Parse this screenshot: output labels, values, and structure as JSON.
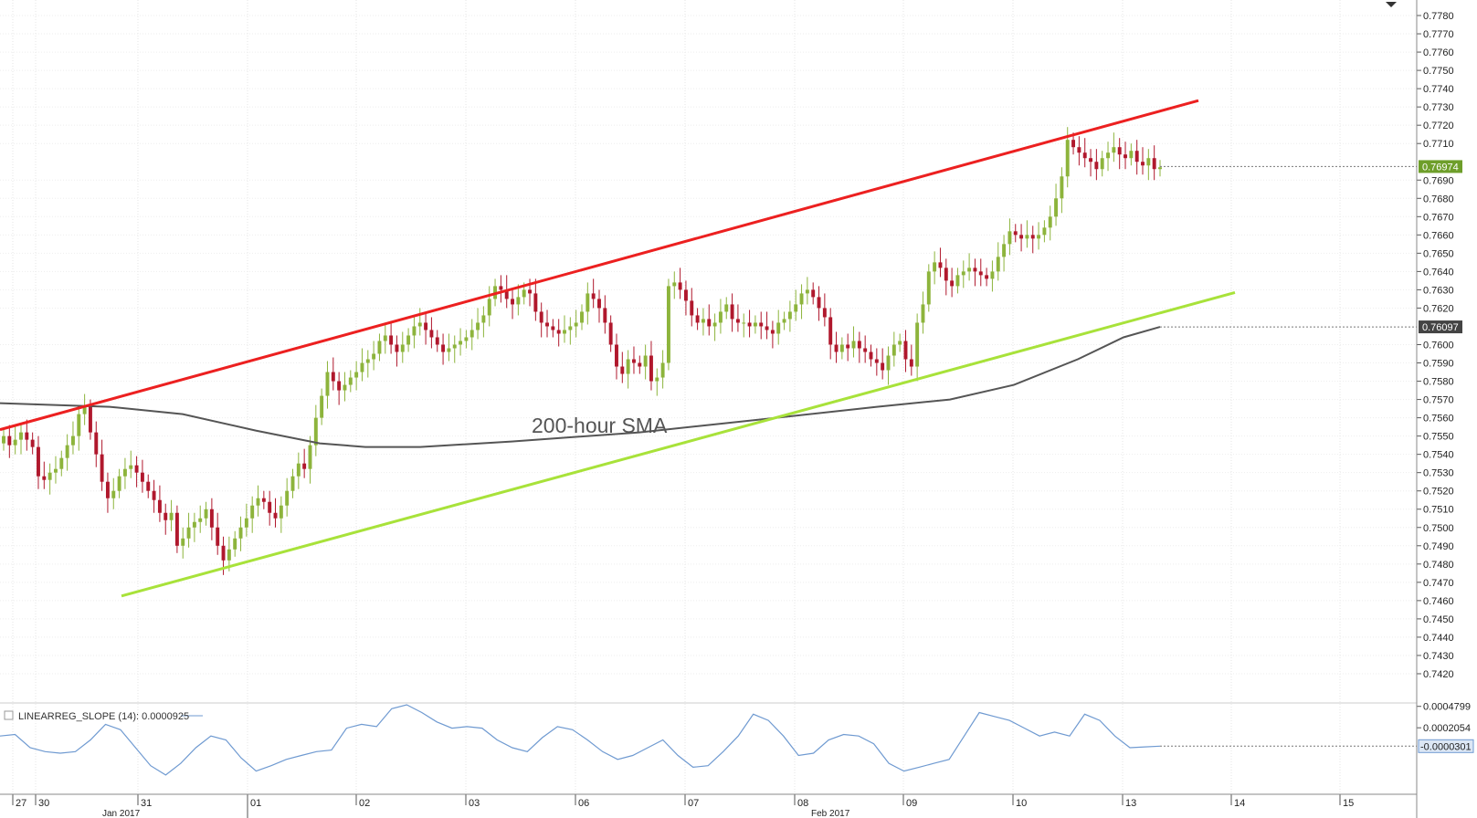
{
  "chart_data": [
    {
      "type": "candlestick",
      "title": "",
      "annotation": "200-hour SMA",
      "ylim": [
        0.7411,
        0.7784
      ],
      "y_ticks": [
        "0.7780",
        "0.7770",
        "0.7760",
        "0.7750",
        "0.7740",
        "0.7730",
        "0.7720",
        "0.7710",
        "0.7690",
        "0.7680",
        "0.7670",
        "0.7660",
        "0.7650",
        "0.7640",
        "0.7630",
        "0.7620",
        "0.7600",
        "0.7590",
        "0.7580",
        "0.7570",
        "0.7560",
        "0.7550",
        "0.7540",
        "0.7530",
        "0.7520",
        "0.7510",
        "0.7500",
        "0.7490",
        "0.7480",
        "0.7470",
        "0.7460",
        "0.7450",
        "0.7440",
        "0.7430",
        "0.7420"
      ],
      "y_tick_values": [
        0.778,
        0.777,
        0.776,
        0.775,
        0.774,
        0.773,
        0.772,
        0.771,
        0.769,
        0.768,
        0.767,
        0.766,
        0.765,
        0.764,
        0.763,
        0.762,
        0.76,
        0.759,
        0.758,
        0.757,
        0.756,
        0.755,
        0.754,
        0.753,
        0.752,
        0.751,
        0.75,
        0.749,
        0.748,
        0.747,
        0.746,
        0.745,
        0.744,
        0.743,
        0.742
      ],
      "price_label": "0.76974",
      "price_value": 0.76974,
      "sma_label": "0.76097",
      "sma_value": 0.76097,
      "x_ticks": [
        "27",
        "30",
        "31",
        "01",
        "02",
        "03",
        "06",
        "07",
        "08",
        "09",
        "10",
        "13",
        "14",
        "15"
      ],
      "x_sublabels": [
        "Jan 2017",
        "Feb 2017"
      ],
      "candles_close": [
        0.755,
        0.7545,
        0.7548,
        0.7552,
        0.7548,
        0.7544,
        0.7528,
        0.7526,
        0.753,
        0.7532,
        0.7538,
        0.7545,
        0.755,
        0.7562,
        0.7566,
        0.7552,
        0.754,
        0.7525,
        0.7516,
        0.752,
        0.7528,
        0.7532,
        0.7534,
        0.753,
        0.7525,
        0.752,
        0.7515,
        0.7508,
        0.7504,
        0.7508,
        0.749,
        0.7494,
        0.75,
        0.7503,
        0.7505,
        0.751,
        0.75,
        0.749,
        0.7482,
        0.7488,
        0.7494,
        0.75,
        0.7505,
        0.7512,
        0.7516,
        0.7514,
        0.7508,
        0.7505,
        0.7512,
        0.752,
        0.7528,
        0.7535,
        0.7532,
        0.7545,
        0.756,
        0.7572,
        0.7585,
        0.758,
        0.7575,
        0.7578,
        0.7582,
        0.7585,
        0.759,
        0.7592,
        0.7595,
        0.7602,
        0.7605,
        0.76,
        0.7596,
        0.76,
        0.7605,
        0.761,
        0.7612,
        0.7608,
        0.7604,
        0.76,
        0.7596,
        0.7598,
        0.76,
        0.7602,
        0.7604,
        0.7608,
        0.7612,
        0.7616,
        0.7625,
        0.7632,
        0.763,
        0.7625,
        0.7622,
        0.7626,
        0.763,
        0.7628,
        0.7618,
        0.7612,
        0.761,
        0.7608,
        0.7606,
        0.7608,
        0.761,
        0.7612,
        0.7618,
        0.7628,
        0.7625,
        0.762,
        0.7612,
        0.76,
        0.7588,
        0.7584,
        0.7592,
        0.759,
        0.7588,
        0.7594,
        0.758,
        0.7582,
        0.759,
        0.7632,
        0.7634,
        0.763,
        0.7624,
        0.7616,
        0.7612,
        0.7614,
        0.761,
        0.7612,
        0.7618,
        0.7622,
        0.7614,
        0.7612,
        0.7612,
        0.761,
        0.7612,
        0.761,
        0.7608,
        0.7606,
        0.7612,
        0.7614,
        0.7618,
        0.7622,
        0.7628,
        0.763,
        0.7626,
        0.762,
        0.7615,
        0.76,
        0.7596,
        0.76,
        0.7598,
        0.7602,
        0.7598,
        0.7596,
        0.7592,
        0.759,
        0.7586,
        0.7594,
        0.76,
        0.7602,
        0.7592,
        0.7588,
        0.7612,
        0.7622,
        0.764,
        0.7645,
        0.7642,
        0.7635,
        0.7632,
        0.7638,
        0.764,
        0.7642,
        0.764,
        0.7638,
        0.7636,
        0.764,
        0.7648,
        0.7655,
        0.7662,
        0.766,
        0.7658,
        0.766,
        0.7658,
        0.766,
        0.7664,
        0.767,
        0.768,
        0.7692,
        0.7712,
        0.7708,
        0.7705,
        0.7702,
        0.77,
        0.7696,
        0.7702,
        0.7705,
        0.7708,
        0.7704,
        0.7702,
        0.7706,
        0.77,
        0.7698,
        0.7702,
        0.7696,
        0.7697
      ]
    },
    {
      "type": "line",
      "title": "LINEARREG_SLOPE (14): 0.0000925",
      "ylim": [
        -0.0006,
        0.0005
      ],
      "y_ticks": [
        "0.0004799",
        "0.0002054"
      ],
      "y_tick_values": [
        0.0004799,
        0.0002054
      ],
      "current_label": "-0.0000301",
      "current_value": -3.01e-05,
      "series": [
        {
          "values": [
            0.0001,
            0.00012,
            -5e-05,
            -0.0001,
            -0.00012,
            -0.0001,
            5e-05,
            0.00025,
            0.00018,
            -5e-05,
            -0.00028,
            -0.0004,
            -0.00025,
            -5e-05,
            0.0001,
            5e-05,
            -0.00018,
            -0.00035,
            -0.00028,
            -0.0002,
            -0.00015,
            -0.0001,
            -8e-05,
            0.0002,
            0.00025,
            0.00022,
            0.00045,
            0.0005,
            0.0004,
            0.00028,
            0.0002,
            0.00022,
            0.0002,
            5e-05,
            -5e-05,
            -0.0001,
            8e-05,
            0.00022,
            0.00018,
            5e-05,
            -0.0001,
            -0.0002,
            -0.00015,
            -5e-05,
            5e-05,
            -0.00015,
            -0.0003,
            -0.00028,
            -0.0001,
            0.0001,
            0.00038,
            0.0003,
            0.0001,
            -0.00015,
            -0.00012,
            5e-05,
            0.00012,
            0.0001,
            0.0,
            -0.00025,
            -0.00035,
            -0.0003,
            -0.00025,
            -0.0002,
            0.0001,
            0.0004,
            0.00035,
            0.0003,
            0.0002,
            0.0001,
            0.00015,
            0.0001,
            0.00038,
            0.0003,
            0.0001,
            -5e-05,
            -4e-05,
            -3e-05
          ]
        }
      ]
    }
  ]
}
